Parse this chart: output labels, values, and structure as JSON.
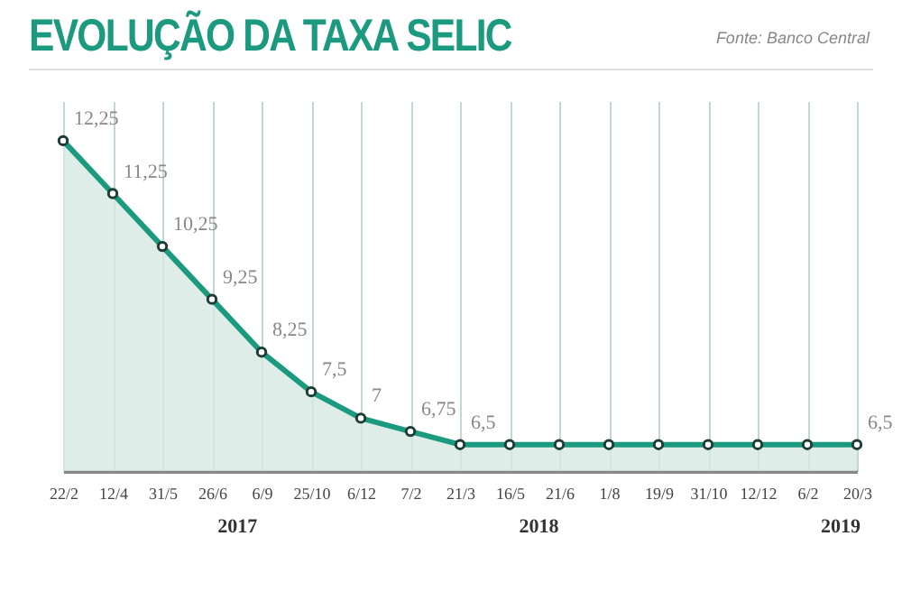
{
  "chart_data": {
    "type": "area",
    "title": "EVOLUÇÃO DA TAXA SELIC",
    "categories": [
      "22/2",
      "12/4",
      "31/5",
      "26/6",
      "6/9",
      "25/10",
      "6/12",
      "7/2",
      "21/3",
      "16/5",
      "21/6",
      "1/8",
      "19/9",
      "31/10",
      "12/12",
      "6/2",
      "20/3"
    ],
    "series": [
      {
        "color": "#1b9a7f",
        "values": [
          12.25,
          11.25,
          10.25,
          9.25,
          8.25,
          7.5,
          7,
          6.75,
          6.5,
          6.5,
          6.5,
          6.5,
          6.5,
          6.5,
          6.5,
          6.5,
          6.5
        ],
        "value_labels": [
          "12,25",
          "11,25",
          "10,25",
          "9,25",
          "8,25",
          "7,5",
          "7",
          "6,75",
          "6,5",
          null,
          null,
          null,
          null,
          null,
          null,
          null,
          "6,5"
        ]
      }
    ],
    "ylim": [
      6,
      13
    ],
    "grid": "x",
    "marker": "circle",
    "annotations": [
      "Fonte: Banco Central",
      "2017",
      "2018",
      "2019"
    ]
  }
}
